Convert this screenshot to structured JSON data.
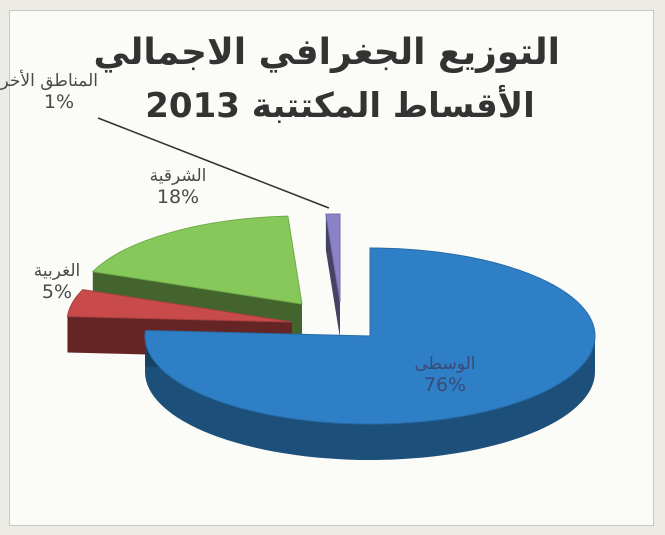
{
  "chart_data": {
    "type": "pie",
    "title_line1": "التوزيع الجغرافي الاجمالي",
    "title_line2": "الأقساط المكتتبة 2013",
    "slices": [
      {
        "label": "الوسطى",
        "value": 76,
        "value_label": "76%",
        "color": "#2e7fc6"
      },
      {
        "label": "الغربية",
        "value": 5,
        "value_label": "5%",
        "color": "#c94a4a"
      },
      {
        "label": "الشرقية",
        "value": 18,
        "value_label": "18%",
        "color": "#86c95a"
      },
      {
        "label": "المناطق الأخرى",
        "value": 1,
        "value_label": "1%",
        "color": "#8a83c8"
      }
    ],
    "legend": "none",
    "style": "exploded-3d"
  }
}
